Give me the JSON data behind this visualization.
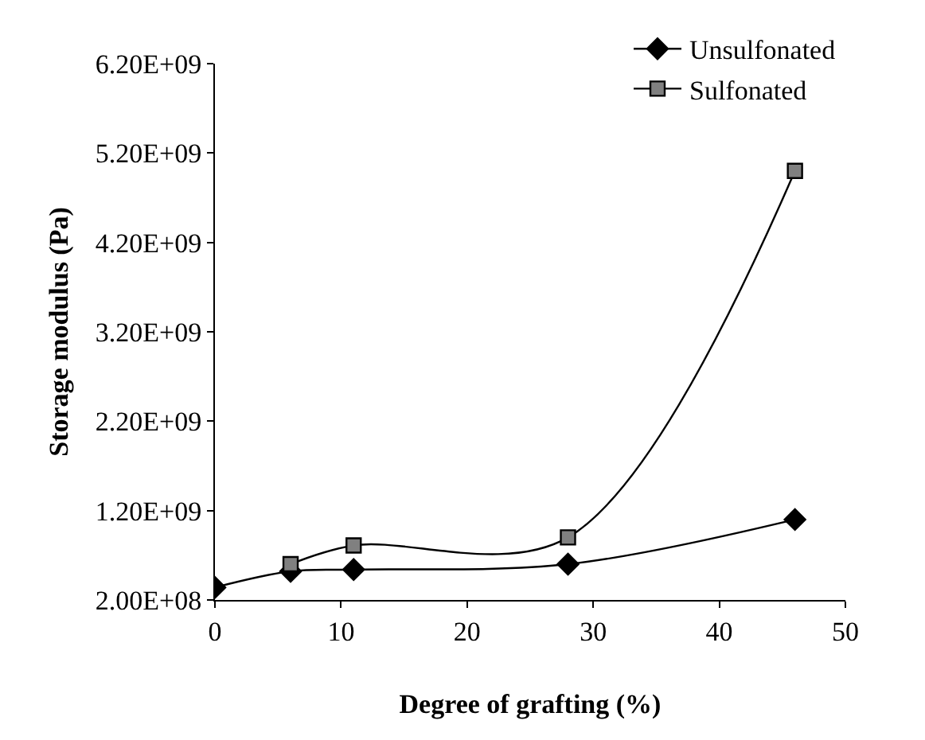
{
  "chart_data": {
    "type": "line",
    "xlabel": "Degree of grafting (%)",
    "ylabel": "Storage modulus (Pa)",
    "xlim": [
      0,
      50
    ],
    "xticks": [
      0,
      10,
      20,
      30,
      40,
      50
    ],
    "ylim": [
      200000000,
      6200000000
    ],
    "yticks": [
      {
        "value": 200000000,
        "label": "2.00E+08"
      },
      {
        "value": 1200000000,
        "label": "1.20E+09"
      },
      {
        "value": 2200000000,
        "label": "2.20E+09"
      },
      {
        "value": 3200000000,
        "label": "3.20E+09"
      },
      {
        "value": 4200000000,
        "label": "4.20E+09"
      },
      {
        "value": 5200000000,
        "label": "5.20E+09"
      },
      {
        "value": 6200000000,
        "label": "6.20E+09"
      }
    ],
    "legend": "top right",
    "series": [
      {
        "name": "Unsulfonated",
        "color": "#000000",
        "marker": "diamond",
        "x": [
          0,
          6,
          11,
          28,
          46
        ],
        "values": [
          340000000,
          520000000,
          540000000,
          600000000,
          1100000000
        ]
      },
      {
        "name": "Sulfonated",
        "color": "#000000",
        "marker": "square",
        "x": [
          6,
          11,
          28,
          46
        ],
        "values": [
          600000000,
          810000000,
          900000000,
          5000000000
        ]
      }
    ]
  }
}
